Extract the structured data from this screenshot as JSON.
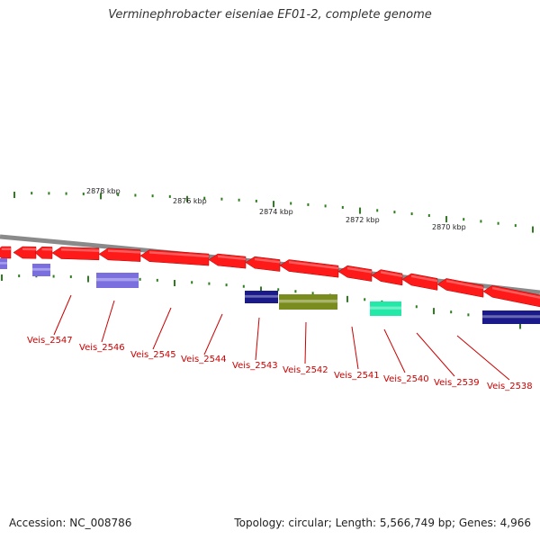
{
  "title": "Verminephrobacter eiseniae EF01-2, complete genome",
  "footer": {
    "accession": "Accession: NC_008786",
    "summary": "Topology: circular; Length: 5,566,749 bp; Genes: 4,966"
  },
  "colors": {
    "cds_forward": "#ff1a1a",
    "backbone": "#8a8a8a",
    "tick": "#2e7d1e",
    "label": "#cc0000",
    "purple": "#7b6fe0",
    "navy": "#1a1a8a",
    "olive": "#7a8c1e",
    "teal": "#22e8a8"
  },
  "scale_labels": [
    "2878 kbp",
    "2876 kbp",
    "2874 kbp",
    "2872 kbp",
    "2870 kbp"
  ],
  "gene_labels": [
    "Veis_2547",
    "Veis_2546",
    "Veis_2545",
    "Veis_2544",
    "Veis_2543",
    "Veis_2542",
    "Veis_2541",
    "Veis_2540",
    "Veis_2539",
    "Veis_2538"
  ]
}
